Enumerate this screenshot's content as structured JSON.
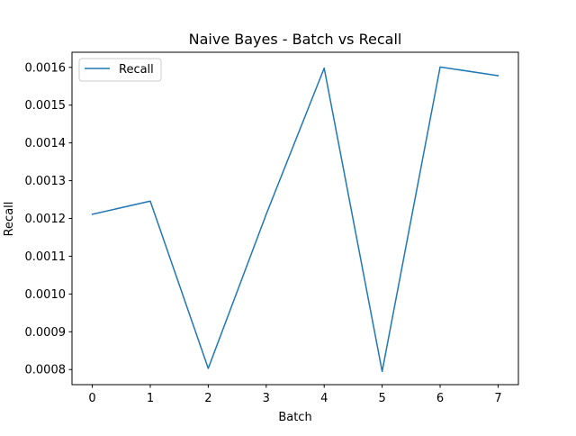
{
  "chart_data": {
    "type": "line",
    "title": "Naive Bayes - Batch vs Recall",
    "xlabel": "Batch",
    "ylabel": "Recall",
    "x": [
      0,
      1,
      2,
      3,
      4,
      5,
      6,
      7
    ],
    "series": [
      {
        "name": "Recall",
        "color": "#1f77b4",
        "values": [
          0.001211,
          0.001246,
          0.000803,
          0.001211,
          0.001598,
          0.000795,
          0.001601,
          0.001578
        ]
      }
    ],
    "xlim": [
      -0.35,
      7.35
    ],
    "ylim": [
      0.00076,
      0.00164
    ],
    "xticks": [
      0,
      1,
      2,
      3,
      4,
      5,
      6,
      7
    ],
    "xtick_labels": [
      "0",
      "1",
      "2",
      "3",
      "4",
      "5",
      "6",
      "7"
    ],
    "yticks": [
      0.0008,
      0.0009,
      0.001,
      0.0011,
      0.0012,
      0.0013,
      0.0014,
      0.0015,
      0.0016
    ],
    "ytick_labels": [
      "0.0008",
      "0.0009",
      "0.0010",
      "0.0011",
      "0.0012",
      "0.0013",
      "0.0014",
      "0.0015",
      "0.0016"
    ],
    "grid": false,
    "legend": "top-left"
  }
}
